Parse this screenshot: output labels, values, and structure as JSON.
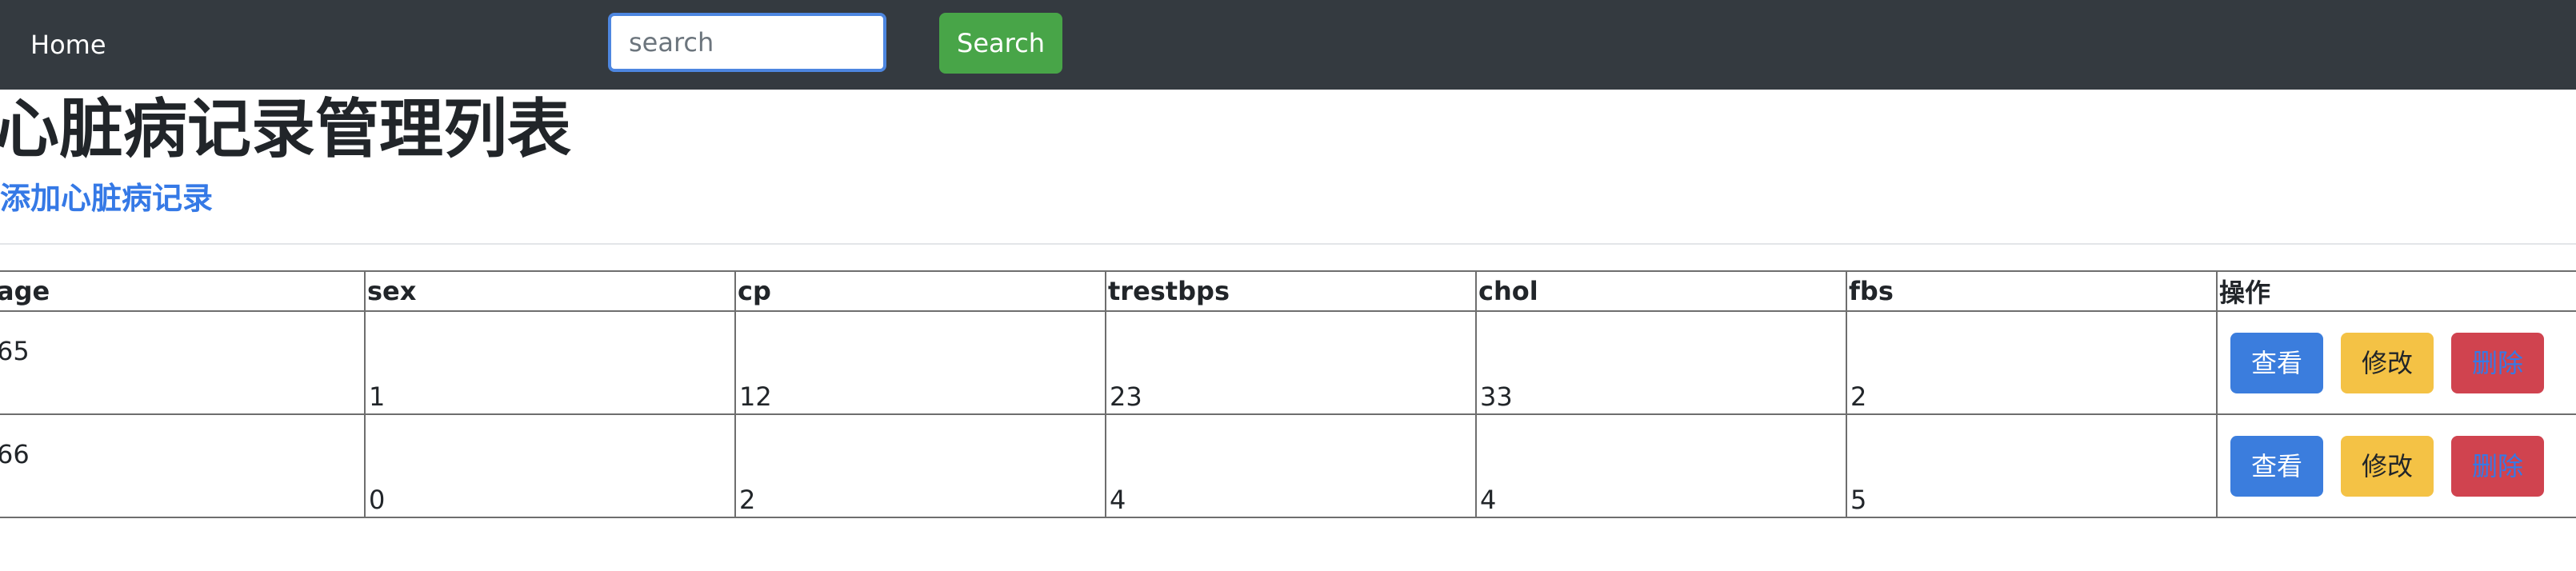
{
  "navbar": {
    "home_label": "Home",
    "search_placeholder": "search",
    "search_value": "",
    "search_button_label": "Search"
  },
  "page": {
    "title": "心脏病记录管理列表",
    "add_link_label": "添加心脏病记录"
  },
  "table": {
    "headers": [
      "age",
      "sex",
      "cp",
      "trestbps",
      "chol",
      "fbs",
      "操作"
    ],
    "rows": [
      {
        "age": "65",
        "sex": "1",
        "cp": "12",
        "trestbps": "23",
        "chol": "33",
        "fbs": "2",
        "actions": {
          "view": "查看",
          "edit": "修改",
          "delete": "删除"
        }
      },
      {
        "age": "66",
        "sex": "0",
        "cp": "2",
        "trestbps": "4",
        "chol": "4",
        "fbs": "5",
        "actions": {
          "view": "查看",
          "edit": "修改",
          "delete": "删除"
        }
      }
    ]
  },
  "colors": {
    "navbar_bg": "#343a40",
    "search_button_bg": "#48a548",
    "link": "#3579e6",
    "view_button_bg": "#3b7ddd",
    "edit_button_bg": "#f4c245",
    "delete_button_bg": "#d0434f"
  }
}
